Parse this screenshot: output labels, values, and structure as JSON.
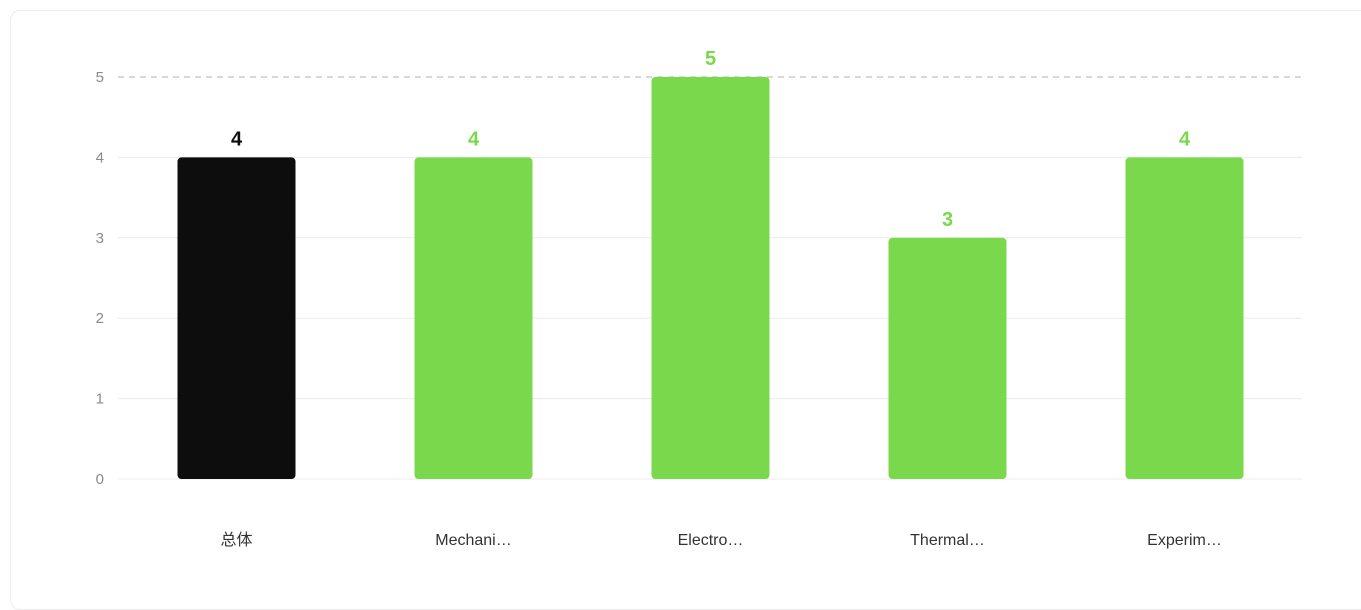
{
  "chart_data": {
    "type": "bar",
    "categories": [
      "总体",
      "Mechani…",
      "Electro…",
      "Thermal…",
      "Experim…"
    ],
    "values": [
      4,
      4,
      5,
      3,
      4
    ],
    "yticks": [
      0,
      1,
      2,
      3,
      4,
      5
    ],
    "ylim": [
      0,
      5
    ],
    "title": "",
    "xlabel": "",
    "ylabel": "",
    "grid": true,
    "colors": {
      "highlight": "#0d0d0d",
      "bar": "#79d84c",
      "grid": "#ececec",
      "max_line": "#cccccc",
      "tick_text": "#8a8a8a",
      "category_text": "#333333"
    }
  }
}
